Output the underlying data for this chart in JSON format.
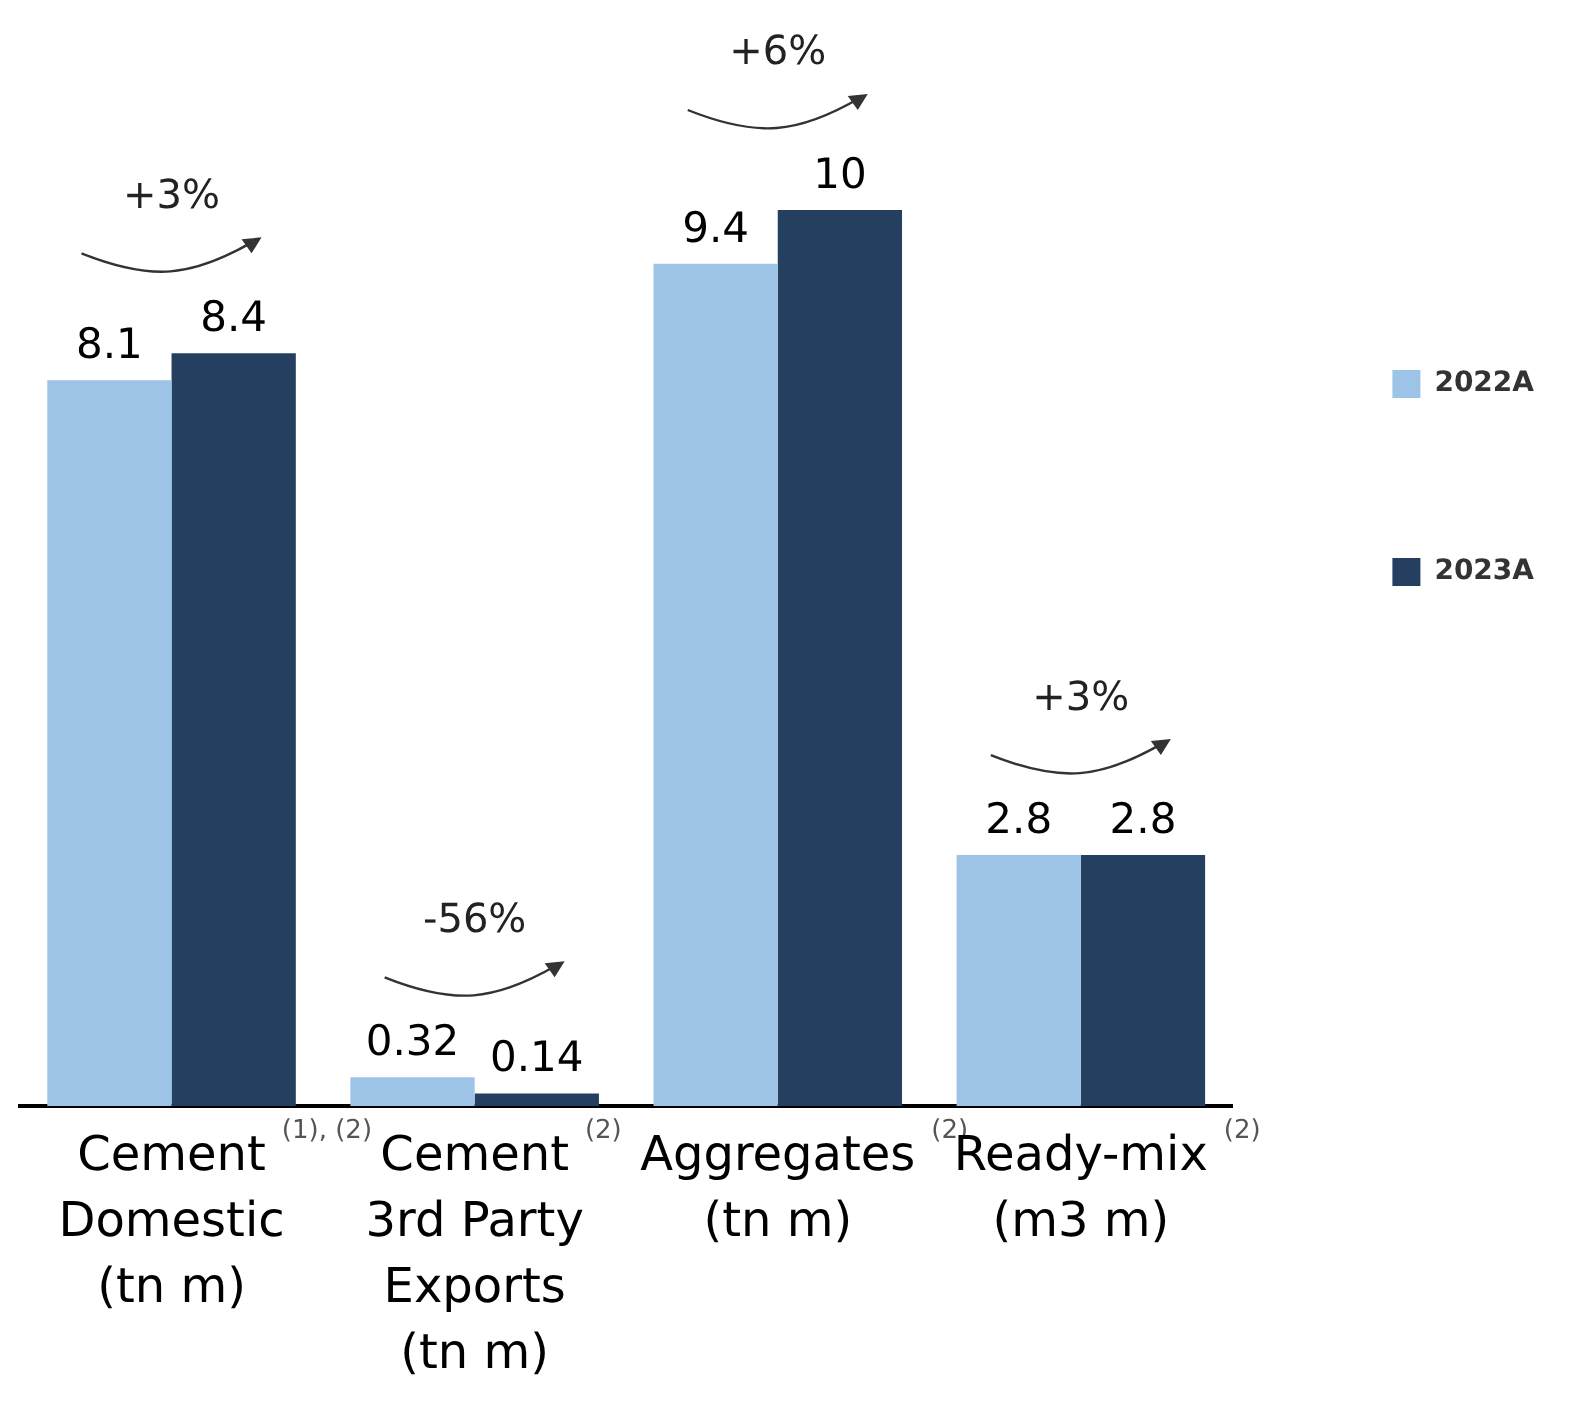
{
  "chart_data": {
    "type": "bar",
    "categories": [
      "Cement Domestic (tn m)$^{(1), (2)}$",
      "Cement 3rd Party Exports (tn m)$^{(2)}$",
      "Aggregates (tn m)$^{(2)}$",
      "Ready-mix (m3 m)$^{(2)}$"
    ],
    "series": [
      {
        "name": "2022A",
        "color": "#9dc3e6",
        "values": [
          8.1,
          0.32,
          9.4,
          2.8
        ]
      },
      {
        "name": "2023A",
        "color": "#243f60",
        "values": [
          8.4,
          0.14,
          10,
          2.8
        ]
      }
    ],
    "data_labels": true,
    "legend": "top right",
    "annotations": [
      "+3%",
      "-56%",
      "+6%",
      "+3%"
    ]
  }
}
